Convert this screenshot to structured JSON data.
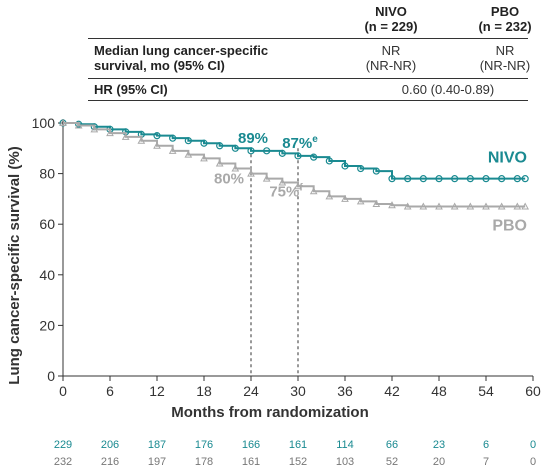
{
  "table": {
    "headers": [
      {
        "name": "NIVO",
        "n": "(n = 229)"
      },
      {
        "name": "PBO",
        "n": "(n = 232)"
      }
    ],
    "median_label_line1": "Median lung cancer-specific",
    "median_label_line2": "survival, mo (95% CI)",
    "median_values": [
      {
        "line1": "NR",
        "line2": "(NR-NR)"
      },
      {
        "line1": "NR",
        "line2": "(NR-NR)"
      }
    ],
    "hr_label": "HR (95% CI)",
    "hr_value": "0.60 (0.40-0.89)"
  },
  "chart_data": {
    "type": "line",
    "subtype": "kaplan-meier",
    "xlabel": "Months from randomization",
    "ylabel": "Lung cancer-specific survival (%)",
    "xlim": [
      0,
      60
    ],
    "ylim": [
      0,
      100
    ],
    "xticks": [
      0,
      6,
      12,
      18,
      24,
      30,
      36,
      42,
      48,
      54,
      60
    ],
    "yticks": [
      0,
      20,
      40,
      60,
      80,
      100
    ],
    "grid": false,
    "reference_lines_x": [
      24,
      30
    ],
    "series": [
      {
        "name": "NIVO",
        "color": "#1a8a91",
        "marker": "circle",
        "x": [
          0,
          2,
          4,
          6,
          8,
          10,
          12,
          14,
          16,
          18,
          20,
          22,
          24,
          26,
          28,
          30,
          32,
          34,
          36,
          38,
          40,
          42,
          44,
          46,
          48,
          50,
          52,
          54,
          56,
          58,
          59
        ],
        "y": [
          100,
          99.5,
          98.5,
          97.5,
          96.5,
          95.5,
          95,
          94,
          93,
          92,
          91,
          90,
          89,
          89,
          88,
          87,
          86.5,
          85,
          83,
          82,
          81,
          78,
          78,
          78,
          78,
          78,
          78,
          78,
          78,
          78,
          78
        ]
      },
      {
        "name": "PBO",
        "color": "#a9a9a9",
        "marker": "triangle",
        "x": [
          0,
          2,
          4,
          6,
          8,
          10,
          12,
          14,
          16,
          18,
          20,
          22,
          24,
          26,
          28,
          30,
          32,
          34,
          36,
          38,
          40,
          42,
          44,
          46,
          48,
          50,
          52,
          54,
          56,
          58,
          59
        ],
        "y": [
          100,
          99,
          97.5,
          96,
          94.5,
          93,
          91,
          89,
          87.5,
          86,
          84,
          82,
          80,
          78,
          76.5,
          75,
          73,
          71,
          70,
          69,
          68,
          67.5,
          67,
          67,
          67,
          67,
          67,
          67,
          67,
          67,
          67
        ]
      }
    ],
    "annotations": [
      {
        "text": "89%",
        "x": 24,
        "y": 89,
        "series": "NIVO"
      },
      {
        "text": "87%",
        "sup": "e",
        "x": 30,
        "y": 87,
        "series": "NIVO"
      },
      {
        "text": "80%",
        "x": 24,
        "y": 80,
        "series": "PBO"
      },
      {
        "text": "75%",
        "sup": "f",
        "x": 30,
        "y": 75,
        "series": "PBO"
      }
    ],
    "at_risk": {
      "x": [
        0,
        6,
        12,
        18,
        24,
        30,
        36,
        42,
        48,
        54,
        60
      ],
      "NIVO": [
        229,
        206,
        187,
        176,
        166,
        161,
        114,
        66,
        23,
        6,
        0
      ],
      "PBO": [
        232,
        216,
        197,
        178,
        161,
        152,
        103,
        52,
        20,
        7,
        0
      ]
    }
  }
}
